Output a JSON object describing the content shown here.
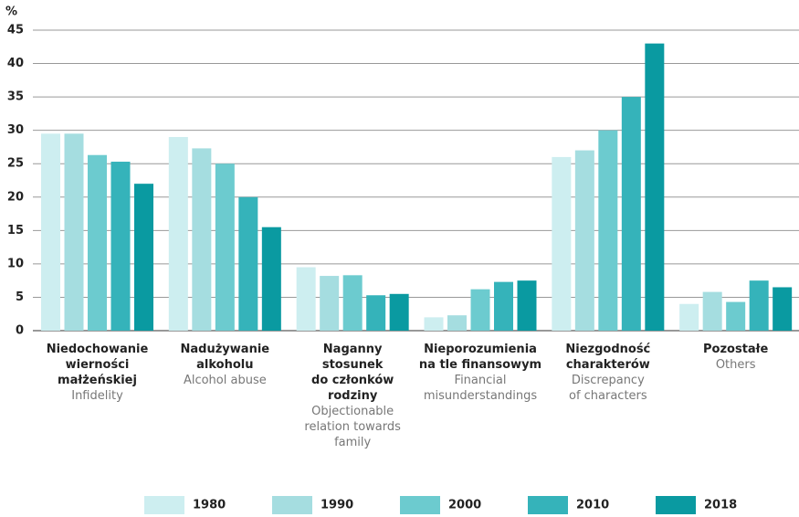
{
  "chart_data": {
    "type": "bar",
    "y_label": "%",
    "categories": [
      "Niedochowanie\nwierności\nmałżeńskiej",
      "Nadużywanie\nalkoholu",
      "Naganny\nstosunek\ndo członków\nrodziny",
      "Nieporozumienia\nna tle finansowym",
      "Niezgodność\ncharakterów",
      "Pozostałe"
    ],
    "categories_en": [
      "Infidelity",
      "Alcohol abuse",
      "Objectionable\nrelation towards\nfamily",
      "Financial\nmisunderstandings",
      "Discrepancy\nof characters",
      "Others"
    ],
    "series": [
      {
        "name": "1980",
        "color": "#cdeef0",
        "values": [
          29.5,
          29,
          9.5,
          2,
          26,
          4
        ]
      },
      {
        "name": "1990",
        "color": "#a5dde0",
        "values": [
          29.5,
          27.3,
          8.2,
          2.3,
          27,
          5.8
        ]
      },
      {
        "name": "2000",
        "color": "#6ccbcf",
        "values": [
          26.3,
          25,
          8.3,
          6.2,
          30,
          4.3
        ]
      },
      {
        "name": "2010",
        "color": "#35b3ba",
        "values": [
          25.3,
          20,
          5.3,
          7.3,
          35,
          7.5
        ]
      },
      {
        "name": "2018",
        "color": "#0a9aa1",
        "values": [
          22,
          15.5,
          5.5,
          7.5,
          43,
          6.5
        ]
      }
    ],
    "ylim": [
      0,
      45
    ],
    "yticks": [
      0,
      5,
      10,
      15,
      20,
      25,
      30,
      35,
      40,
      45
    ],
    "grid": true,
    "legend": "bottom"
  }
}
